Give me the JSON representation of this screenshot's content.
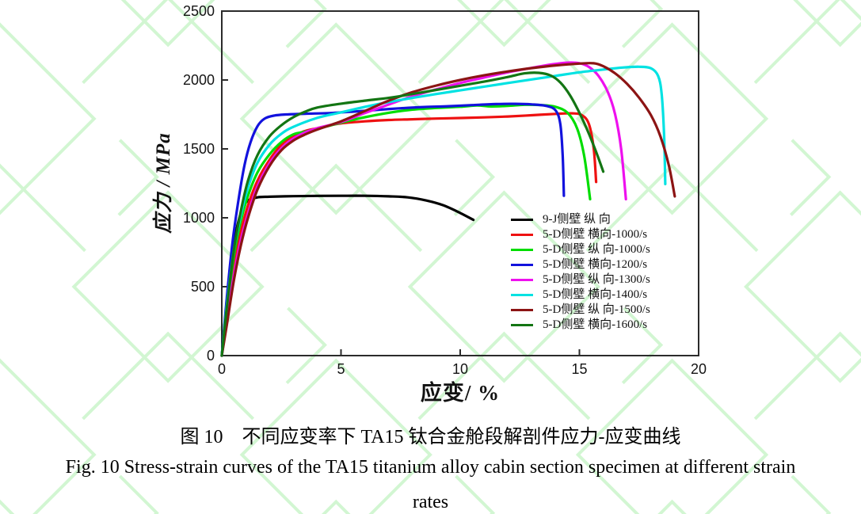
{
  "figure": {
    "caption_cn": "图 10　不同应变率下 TA15 钛合金舱段解剖件应力-应变曲线",
    "caption_en_line1": "Fig. 10 Stress-strain curves of the TA15 titanium alloy cabin section specimen at different strain",
    "caption_en_line2": "rates"
  },
  "watermark": {
    "color": "#aeefae"
  },
  "chart_data": {
    "type": "line",
    "title": "",
    "xlabel": "应变/ %",
    "ylabel": "应力 / MPa",
    "xlim": [
      0,
      20
    ],
    "ylim": [
      0,
      2500
    ],
    "x_ticks": [
      0,
      5,
      10,
      15,
      20
    ],
    "y_ticks": [
      0,
      500,
      1000,
      1500,
      2000,
      2500
    ],
    "grid": false,
    "legend_position": "inside-lower-right",
    "axis_color": "#2b2b2b",
    "tick_label_color": "#141414",
    "series": [
      {
        "name": "9-J侧壁 纵 向",
        "color": "#000000",
        "points": [
          [
            0,
            0
          ],
          [
            0.15,
            250
          ],
          [
            0.35,
            620
          ],
          [
            0.6,
            900
          ],
          [
            0.85,
            1060
          ],
          [
            1.1,
            1125
          ],
          [
            1.5,
            1148
          ],
          [
            2,
            1153
          ],
          [
            3,
            1157
          ],
          [
            4,
            1159
          ],
          [
            5,
            1160
          ],
          [
            6,
            1160
          ],
          [
            7,
            1156
          ],
          [
            7.8,
            1148
          ],
          [
            8.6,
            1125
          ],
          [
            9.3,
            1090
          ],
          [
            10,
            1035
          ],
          [
            10.55,
            985
          ]
        ]
      },
      {
        "name": "5-D侧壁 横向-1000/s",
        "color": "#ee1111",
        "points": [
          [
            0,
            0
          ],
          [
            0.2,
            260
          ],
          [
            0.5,
            640
          ],
          [
            0.8,
            900
          ],
          [
            1.1,
            1090
          ],
          [
            1.5,
            1270
          ],
          [
            2,
            1420
          ],
          [
            2.5,
            1530
          ],
          [
            3,
            1595
          ],
          [
            3.5,
            1630
          ],
          [
            4,
            1650
          ],
          [
            4.5,
            1670
          ],
          [
            5,
            1685
          ],
          [
            6,
            1700
          ],
          [
            7,
            1710
          ],
          [
            8,
            1715
          ],
          [
            9,
            1720
          ],
          [
            10,
            1724
          ],
          [
            11,
            1729
          ],
          [
            12,
            1735
          ],
          [
            13,
            1744
          ],
          [
            14,
            1754
          ],
          [
            14.7,
            1758
          ],
          [
            15.1,
            1745
          ],
          [
            15.4,
            1680
          ],
          [
            15.6,
            1500
          ],
          [
            15.7,
            1260
          ]
        ]
      },
      {
        "name": "5-D侧壁 纵 向-1000/s",
        "color": "#00dd00",
        "points": [
          [
            0,
            0
          ],
          [
            0.2,
            320
          ],
          [
            0.5,
            720
          ],
          [
            0.8,
            980
          ],
          [
            1.1,
            1160
          ],
          [
            1.5,
            1330
          ],
          [
            2,
            1460
          ],
          [
            2.5,
            1550
          ],
          [
            3,
            1605
          ],
          [
            3.5,
            1625
          ],
          [
            4,
            1645
          ],
          [
            5,
            1690
          ],
          [
            6,
            1730
          ],
          [
            7,
            1762
          ],
          [
            8,
            1785
          ],
          [
            9,
            1797
          ],
          [
            10,
            1806
          ],
          [
            10.7,
            1815
          ],
          [
            11.3,
            1808
          ],
          [
            12,
            1812
          ],
          [
            12.7,
            1820
          ],
          [
            13.4,
            1818
          ],
          [
            14,
            1805
          ],
          [
            14.5,
            1762
          ],
          [
            14.9,
            1650
          ],
          [
            15.2,
            1450
          ],
          [
            15.45,
            1135
          ]
        ]
      },
      {
        "name": "5-D侧壁 横向-1200/s",
        "color": "#1212dd",
        "points": [
          [
            0,
            0
          ],
          [
            0.2,
            400
          ],
          [
            0.45,
            820
          ],
          [
            0.7,
            1130
          ],
          [
            0.95,
            1380
          ],
          [
            1.2,
            1545
          ],
          [
            1.5,
            1665
          ],
          [
            1.8,
            1720
          ],
          [
            2.2,
            1742
          ],
          [
            2.7,
            1750
          ],
          [
            3.5,
            1755
          ],
          [
            4.5,
            1760
          ],
          [
            5.5,
            1770
          ],
          [
            6.5,
            1783
          ],
          [
            7.5,
            1795
          ],
          [
            8.5,
            1804
          ],
          [
            9.5,
            1810
          ],
          [
            10.5,
            1818
          ],
          [
            11.5,
            1825
          ],
          [
            12.3,
            1827
          ],
          [
            13,
            1823
          ],
          [
            13.6,
            1812
          ],
          [
            14,
            1780
          ],
          [
            14.2,
            1680
          ],
          [
            14.3,
            1450
          ],
          [
            14.35,
            1160
          ]
        ]
      },
      {
        "name": "5-D侧壁 纵 向-1300/s",
        "color": "#ee10ee",
        "points": [
          [
            0,
            0
          ],
          [
            0.2,
            230
          ],
          [
            0.5,
            580
          ],
          [
            0.8,
            840
          ],
          [
            1.1,
            1030
          ],
          [
            1.5,
            1230
          ],
          [
            2,
            1395
          ],
          [
            2.5,
            1505
          ],
          [
            3,
            1575
          ],
          [
            3.5,
            1620
          ],
          [
            4,
            1650
          ],
          [
            5,
            1695
          ],
          [
            6,
            1760
          ],
          [
            7,
            1822
          ],
          [
            8,
            1882
          ],
          [
            9,
            1932
          ],
          [
            10,
            1978
          ],
          [
            11,
            2018
          ],
          [
            12,
            2056
          ],
          [
            13,
            2088
          ],
          [
            13.8,
            2112
          ],
          [
            14.5,
            2126
          ],
          [
            15,
            2122
          ],
          [
            15.4,
            2095
          ],
          [
            15.8,
            2030
          ],
          [
            16.2,
            1910
          ],
          [
            16.5,
            1750
          ],
          [
            16.75,
            1500
          ],
          [
            16.95,
            1135
          ]
        ]
      },
      {
        "name": "5-D侧壁 横向-1400/s",
        "color": "#00e2e2",
        "points": [
          [
            0,
            0
          ],
          [
            0.2,
            350
          ],
          [
            0.5,
            760
          ],
          [
            0.8,
            1020
          ],
          [
            1.1,
            1220
          ],
          [
            1.5,
            1400
          ],
          [
            2,
            1530
          ],
          [
            2.5,
            1610
          ],
          [
            3,
            1660
          ],
          [
            4,
            1725
          ],
          [
            5,
            1765
          ],
          [
            6,
            1805
          ],
          [
            7,
            1840
          ],
          [
            8,
            1870
          ],
          [
            9,
            1898
          ],
          [
            10,
            1925
          ],
          [
            11,
            1952
          ],
          [
            12,
            1978
          ],
          [
            13,
            2004
          ],
          [
            14,
            2030
          ],
          [
            15,
            2056
          ],
          [
            16,
            2076
          ],
          [
            16.8,
            2090
          ],
          [
            17.5,
            2096
          ],
          [
            18,
            2085
          ],
          [
            18.3,
            2030
          ],
          [
            18.45,
            1900
          ],
          [
            18.55,
            1600
          ],
          [
            18.6,
            1245
          ]
        ]
      },
      {
        "name": "5-D侧壁 纵 向-1500/s",
        "color": "#8c1414",
        "points": [
          [
            0,
            0
          ],
          [
            0.2,
            210
          ],
          [
            0.5,
            540
          ],
          [
            0.8,
            800
          ],
          [
            1.1,
            1000
          ],
          [
            1.5,
            1205
          ],
          [
            2,
            1375
          ],
          [
            2.5,
            1490
          ],
          [
            3,
            1560
          ],
          [
            3.5,
            1605
          ],
          [
            4,
            1640
          ],
          [
            5,
            1700
          ],
          [
            6,
            1775
          ],
          [
            7,
            1850
          ],
          [
            8,
            1912
          ],
          [
            9,
            1960
          ],
          [
            10,
            2000
          ],
          [
            11,
            2034
          ],
          [
            12,
            2062
          ],
          [
            13,
            2086
          ],
          [
            14,
            2106
          ],
          [
            15,
            2119
          ],
          [
            15.6,
            2121
          ],
          [
            16,
            2100
          ],
          [
            16.5,
            2048
          ],
          [
            17,
            1972
          ],
          [
            17.5,
            1872
          ],
          [
            18,
            1745
          ],
          [
            18.4,
            1590
          ],
          [
            18.75,
            1380
          ],
          [
            19,
            1155
          ]
        ]
      },
      {
        "name": "5-D侧壁 横向-1600/s",
        "color": "#137513",
        "points": [
          [
            0,
            0
          ],
          [
            0.2,
            330
          ],
          [
            0.5,
            760
          ],
          [
            0.8,
            1050
          ],
          [
            1.1,
            1270
          ],
          [
            1.5,
            1455
          ],
          [
            2,
            1590
          ],
          [
            2.5,
            1672
          ],
          [
            3,
            1730
          ],
          [
            3.5,
            1770
          ],
          [
            4,
            1800
          ],
          [
            5,
            1828
          ],
          [
            6,
            1850
          ],
          [
            7,
            1870
          ],
          [
            8,
            1898
          ],
          [
            9,
            1928
          ],
          [
            10,
            1958
          ],
          [
            11,
            1988
          ],
          [
            12,
            2022
          ],
          [
            12.7,
            2048
          ],
          [
            13.3,
            2052
          ],
          [
            13.8,
            2032
          ],
          [
            14.2,
            1982
          ],
          [
            14.6,
            1890
          ],
          [
            15,
            1762
          ],
          [
            15.4,
            1610
          ],
          [
            15.75,
            1455
          ],
          [
            16,
            1335
          ]
        ]
      }
    ]
  }
}
